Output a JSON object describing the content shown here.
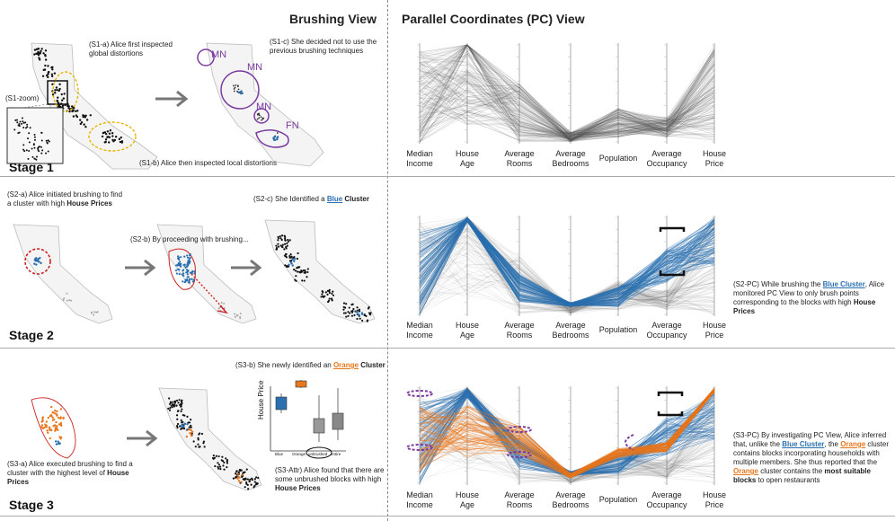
{
  "headers": {
    "brushing": "Brushing View",
    "pc": "Parallel Coordinates (PC) View"
  },
  "stages": [
    "Stage 1",
    "Stage 2",
    "Stage 3"
  ],
  "stage1": {
    "s1a": "(S1-a) Alice first inspected global distortions",
    "s1b": "(S1-b) Alice then inspected local distortions",
    "s1c": "(S1-c) She decided not to use the previous brushing techniques",
    "zoom": "(S1-zoom)",
    "mn": "MN",
    "fn": "FN"
  },
  "stage2": {
    "s2a_pre": "(S2-a) Alice initiated brushing to find a cluster with high ",
    "s2a_bold": "House Prices",
    "s2b": "(S2-b) By proceeding with brushing...",
    "s2c_pre": "(S2-c) She Identified a ",
    "s2c_blue": "Blue",
    "s2c_post": " Cluster",
    "pc1": "(S2-PC) While brushing the ",
    "pc_blue": "Blue Cluster",
    "pc2": ", Alice monitored PC View to only brush points corresponding to the blocks with high ",
    "pc_bold": "House Prices"
  },
  "stage3": {
    "s3a_pre": "(S3-a) Alice executed brushing to find a cluster with the highest level of ",
    "s3a_bold": "House Prices",
    "s3b_pre": "(S3-b) She newly identified an ",
    "s3b_orange": "Orange",
    "s3b_post": " Cluster",
    "s3attr_pre": "(S3-Attr) Alice found that there are some unbrushed blocks with high ",
    "s3attr_bold": "House Prices",
    "boxplot_ylabel": "House Price",
    "boxplot_x": [
      "Blue",
      "Orange",
      "unbrushed",
      "entire"
    ],
    "pc1": "(S3-PC) By investigating PC View, Alice inferred that, unlike the ",
    "pc_blue": "Blue Cluster",
    "pc2": ", the ",
    "pc_orange1": "Orange",
    "pc3": " cluster contains blocks incorporating households with multiple members. She thus reported that the ",
    "pc_orange2": "Orange",
    "pc4": " cluster contains the ",
    "pc_bold": "most suitable blocks",
    "pc5": " to open restaurants"
  },
  "axes": [
    "Median\nIncome",
    "House\nAge",
    "Average\nRooms",
    "Average\nBedrooms",
    "Population",
    "Average\nOccupancy",
    "House\nPrice"
  ],
  "colors": {
    "blue": "#2a6fb0",
    "orange": "#e8761c",
    "purple": "#7b3aa0",
    "red": "#cc2222",
    "grey": "#888888"
  }
}
